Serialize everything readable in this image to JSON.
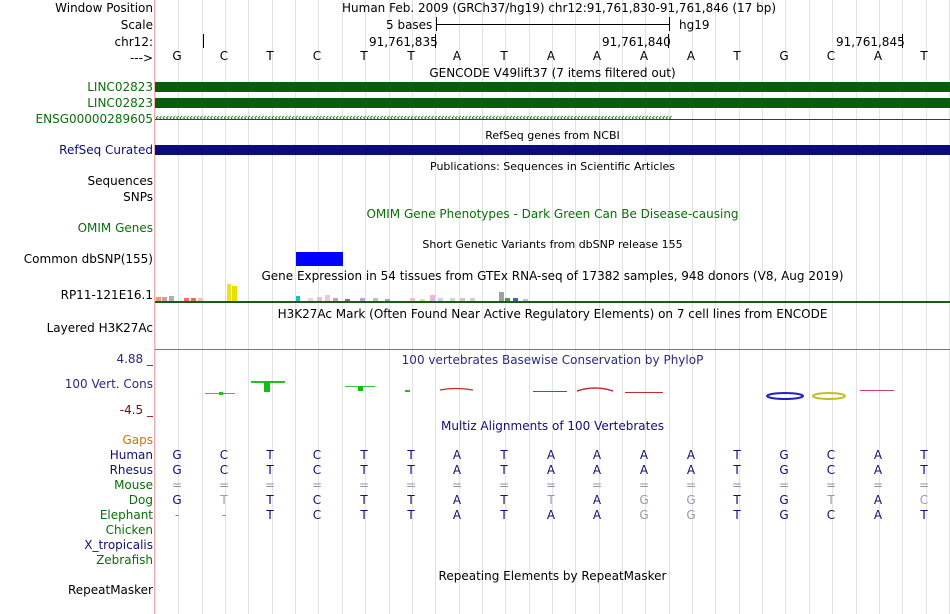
{
  "header": {
    "window_position_label": "Window Position",
    "window_position_value": "Human Feb. 2009 (GRCh37/hg19)   chr12:91,761,830-91,761,846 (17 bp)",
    "scale_label": "Scale",
    "scale_bases": "5 bases",
    "scale_assembly": "hg19",
    "chrom_label": "chr12:",
    "strand_label": "--->",
    "coords": [
      "91,761,835",
      "91,761,840",
      "91,761,845"
    ]
  },
  "sequence": [
    "G",
    "C",
    "T",
    "C",
    "T",
    "T",
    "A",
    "T",
    "A",
    "A",
    "A",
    "A",
    "T",
    "G",
    "C",
    "A",
    "T"
  ],
  "tracks": {
    "gencode": {
      "title": "GENCODE V49lift37 (7 items filtered out)",
      "items": [
        "LINC02823",
        "LINC02823",
        "ENSG00000289605"
      ],
      "color": "#0a5e0a",
      "arrows": "‹‹‹‹‹‹‹‹‹‹‹‹‹‹‹‹‹‹‹‹‹‹‹‹‹‹‹‹‹‹‹‹‹‹‹‹‹‹‹‹‹‹‹‹‹‹‹‹‹‹‹‹‹‹‹‹‹‹‹‹‹‹‹‹‹‹‹‹‹‹‹‹‹‹‹‹‹‹‹‹‹‹‹‹‹‹‹‹‹‹‹‹‹‹‹‹‹‹‹‹‹‹‹‹‹‹‹‹‹‹‹‹‹‹‹‹‹‹‹‹‹‹‹‹‹‹‹‹‹‹‹‹‹‹‹‹‹‹‹‹‹‹‹‹‹‹‹‹‹‹‹‹"
    },
    "refseq": {
      "title": "RefSeq genes from NCBI",
      "label": "RefSeq Curated",
      "color": "#0c0c78"
    },
    "publications": {
      "title": "Publications: Sequences in Scientific Articles"
    },
    "sequences": {
      "label": "Sequences"
    },
    "snps": {
      "label": "SNPs"
    },
    "omim": {
      "title": "OMIM Gene Phenotypes - Dark Green Can Be Disease-causing",
      "label": "OMIM Genes",
      "color": "#0a6e0a"
    },
    "dbsnp": {
      "title": "Short Genetic Variants from dbSNP release 155",
      "label": "Common dbSNP(155)",
      "color": "#0000ff"
    },
    "gtex": {
      "title": "Gene Expression in 54 tissues from GTEx RNA-seq of 17382 samples, 948 donors (V8, Aug 2019)",
      "label": "RP11-121E16.1"
    },
    "h3k27ac": {
      "title": "H3K27Ac Mark (Often Found Near Active Regulatory Elements) on 7 cell lines from ENCODE",
      "label": "Layered H3K27Ac"
    },
    "phylop": {
      "title": "100 vertebrates Basewise Conservation by PhyloP",
      "label": "100 Vert. Cons",
      "max": "4.88 _",
      "min": "-4.5 _",
      "color": "#2a2a7e",
      "min_color": "#7a0a0a"
    },
    "multiz": {
      "title": "Multiz Alignments of 100 Vertebrates",
      "gaps_label": "Gaps",
      "gaps_color": "#c87800",
      "species": [
        {
          "name": "Human",
          "color": "#101070",
          "seq": [
            "G",
            "C",
            "T",
            "C",
            "T",
            "T",
            "A",
            "T",
            "A",
            "A",
            "A",
            "A",
            "T",
            "G",
            "C",
            "A",
            "T"
          ]
        },
        {
          "name": "Rhesus",
          "color": "#101070",
          "seq": [
            "G",
            "C",
            "T",
            "C",
            "T",
            "T",
            "A",
            "T",
            "A",
            "A",
            "A",
            "A",
            "T",
            "G",
            "C",
            "A",
            "T"
          ]
        },
        {
          "name": "Mouse",
          "color": "#0a6e0a",
          "seq": [
            "=",
            "=",
            "=",
            "=",
            "=",
            "=",
            "=",
            "=",
            "=",
            "=",
            "=",
            "=",
            "=",
            "=",
            "=",
            "=",
            "="
          ]
        },
        {
          "name": "Dog",
          "color": "#0a6e0a",
          "seq": [
            "G",
            "T",
            "T",
            "C",
            "T",
            "T",
            "A",
            "T",
            "T",
            "A",
            "G",
            "G",
            "T",
            "G",
            "T",
            "A",
            "C"
          ]
        },
        {
          "name": "Elephant",
          "color": "#0a6e0a",
          "seq": [
            "-",
            "-",
            "T",
            "C",
            "T",
            "T",
            "A",
            "T",
            "A",
            "A",
            "G",
            "G",
            "T",
            "G",
            "C",
            "A",
            "T"
          ]
        },
        {
          "name": "Chicken",
          "color": "#0a6e0a",
          "seq": []
        },
        {
          "name": "X_tropicalis",
          "color": "#101070",
          "seq": []
        },
        {
          "name": "Zebrafish",
          "color": "#0a6e0a",
          "seq": []
        }
      ]
    },
    "repeatmasker": {
      "title": "Repeating Elements by RepeatMasker",
      "label": "RepeatMasker"
    }
  }
}
